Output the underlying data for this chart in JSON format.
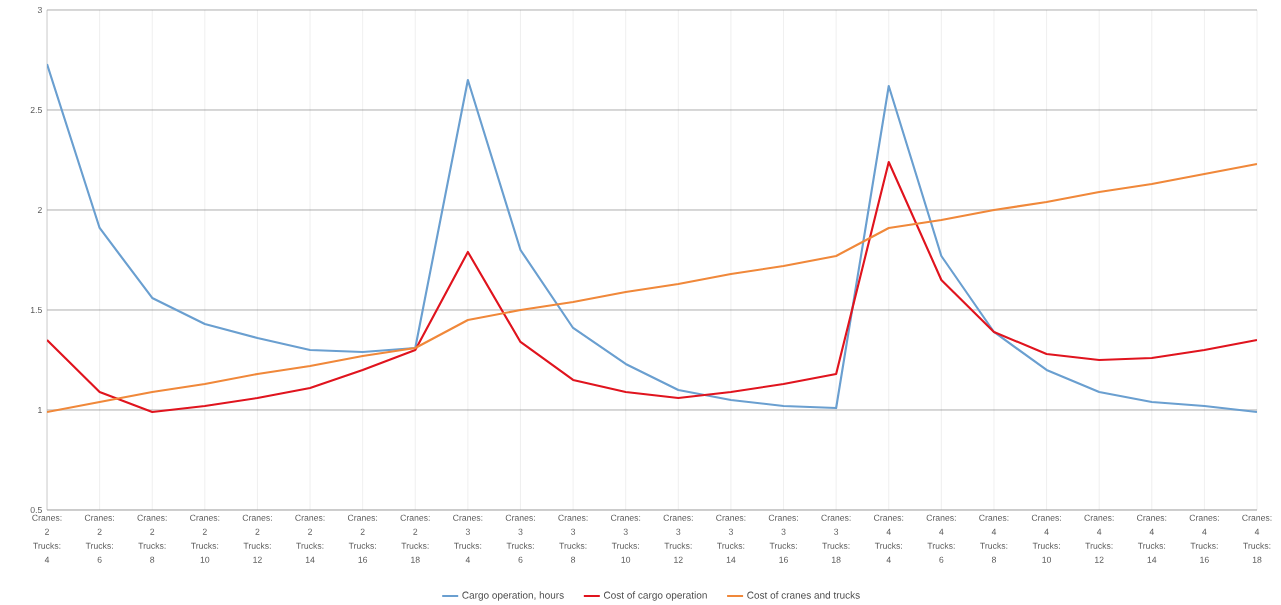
{
  "chart_data": {
    "type": "line",
    "categories": [
      "Cranes: 2 Trucks: 4",
      "Cranes: 2 Trucks: 6",
      "Cranes: 2 Trucks: 8",
      "Cranes: 2 Trucks: 10",
      "Cranes: 2 Trucks: 12",
      "Cranes: 2 Trucks: 14",
      "Cranes: 2 Trucks: 16",
      "Cranes: 2 Trucks: 18",
      "Cranes: 3 Trucks: 4",
      "Cranes: 3 Trucks: 6",
      "Cranes: 3 Trucks: 8",
      "Cranes: 3 Trucks: 10",
      "Cranes: 3 Trucks: 12",
      "Cranes: 3 Trucks: 14",
      "Cranes: 3 Trucks: 16",
      "Cranes: 3 Trucks: 18",
      "Cranes: 4 Trucks: 4",
      "Cranes: 4 Trucks: 6",
      "Cranes: 4 Trucks: 8",
      "Cranes: 4 Trucks: 10",
      "Cranes: 4 Trucks: 12",
      "Cranes: 4 Trucks: 14",
      "Cranes: 4 Trucks: 16",
      "Cranes: 4 Trucks: 18"
    ],
    "series": [
      {
        "name": "Cargo operation, hours",
        "color": "#6a9fd0",
        "values": [
          2.73,
          1.91,
          1.56,
          1.43,
          1.36,
          1.3,
          1.29,
          1.31,
          2.65,
          1.8,
          1.41,
          1.23,
          1.1,
          1.05,
          1.02,
          1.01,
          2.62,
          1.77,
          1.39,
          1.2,
          1.09,
          1.04,
          1.02,
          0.99
        ]
      },
      {
        "name": "Cost of cargo operation",
        "color": "#e0141e",
        "values": [
          1.35,
          1.09,
          0.99,
          1.02,
          1.06,
          1.11,
          1.2,
          1.3,
          1.79,
          1.34,
          1.15,
          1.09,
          1.06,
          1.09,
          1.13,
          1.18,
          2.24,
          1.65,
          1.39,
          1.28,
          1.25,
          1.26,
          1.3,
          1.35
        ]
      },
      {
        "name": "Cost of cranes and trucks",
        "color": "#f0883a",
        "values": [
          0.99,
          1.04,
          1.09,
          1.13,
          1.18,
          1.22,
          1.27,
          1.31,
          1.45,
          1.5,
          1.54,
          1.59,
          1.63,
          1.68,
          1.72,
          1.77,
          1.91,
          1.95,
          2.0,
          2.04,
          2.09,
          2.13,
          2.18,
          2.23
        ]
      }
    ],
    "ylim": [
      0.5,
      3
    ],
    "yticks": [
      0.5,
      1,
      1.5,
      2,
      2.5,
      3
    ],
    "grid": true,
    "legend": "bottom",
    "marker": "none",
    "line_style": "solid"
  }
}
